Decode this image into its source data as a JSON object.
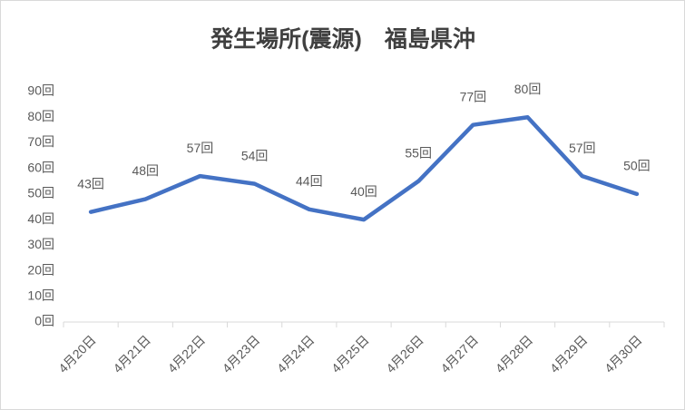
{
  "chart_data": {
    "type": "line",
    "title": "発生場所(震源)　福島県沖",
    "categories": [
      "4月20日",
      "4月21日",
      "4月22日",
      "4月23日",
      "4月24日",
      "4月25日",
      "4月26日",
      "4月27日",
      "4月28日",
      "4月29日",
      "4月30日"
    ],
    "values": [
      43,
      48,
      57,
      54,
      44,
      40,
      55,
      77,
      80,
      57,
      50
    ],
    "value_labels": [
      "43回",
      "48回",
      "57回",
      "54回",
      "44回",
      "40回",
      "55回",
      "77回",
      "80回",
      "57回",
      "50回"
    ],
    "color": "#4472c4",
    "ylim": [
      0,
      90
    ],
    "yticks": [
      {
        "value": 0,
        "label": "0回"
      },
      {
        "value": 10,
        "label": "10回"
      },
      {
        "value": 20,
        "label": "20回"
      },
      {
        "value": 30,
        "label": "30回"
      },
      {
        "value": 40,
        "label": "40回"
      },
      {
        "value": 50,
        "label": "50回"
      },
      {
        "value": 60,
        "label": "60回"
      },
      {
        "value": 70,
        "label": "70回"
      },
      {
        "value": 80,
        "label": "80回"
      },
      {
        "value": 90,
        "label": "90回"
      }
    ],
    "grid": false
  }
}
